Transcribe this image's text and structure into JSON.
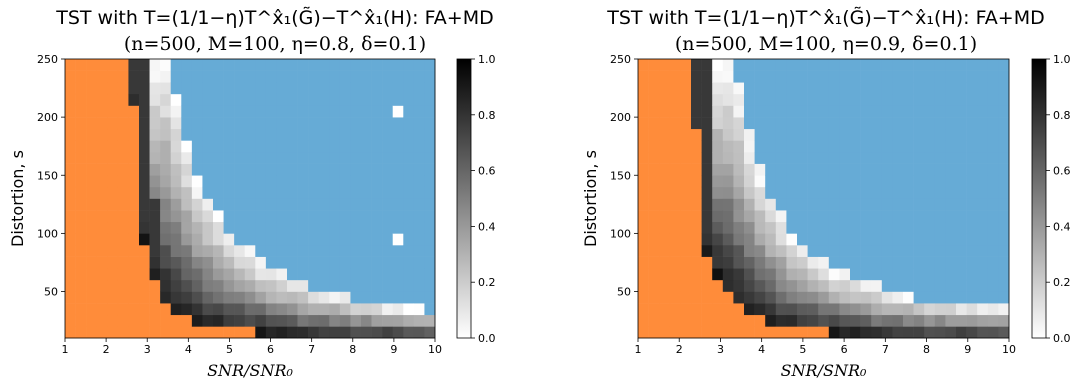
{
  "colors": {
    "fail_region": "#ff8c3a",
    "pass_region": "#66abd6"
  },
  "chart_data": [
    {
      "type": "heatmap",
      "title": "TST with T=(1/1−η)T^x̂₁(G̃)−T^x̂₁(H): FA+MD",
      "subtitle": "(n=500, M=100, η=0.8, δ=0.1)",
      "xlabel": "SNR/SNR₀",
      "ylabel": "Distortion, s",
      "xlim": [
        1,
        10
      ],
      "ylim": [
        10,
        250
      ],
      "x_ticks": [
        "1",
        "2",
        "3",
        "4",
        "5",
        "6",
        "7",
        "8",
        "9",
        "10"
      ],
      "y_ticks": [
        "50",
        "100",
        "150",
        "200",
        "250"
      ],
      "colorbar": {
        "range": [
          0.0,
          1.0
        ],
        "ticks": [
          "0.0",
          "0.2",
          "0.4",
          "0.6",
          "0.8",
          "1.0"
        ],
        "colormap": "white-to-black"
      },
      "boundary_s": [
        [
          2.6,
          250
        ],
        [
          2.7,
          200
        ],
        [
          2.8,
          150
        ],
        [
          2.9,
          100
        ],
        [
          3.0,
          80
        ],
        [
          3.2,
          60
        ],
        [
          3.5,
          40
        ],
        [
          4.0,
          25
        ],
        [
          5.0,
          18
        ],
        [
          6.0,
          14
        ],
        [
          7.0,
          12
        ],
        [
          8.0,
          11
        ],
        [
          10.0,
          10
        ]
      ],
      "transition_end_s": [
        [
          3.5,
          250
        ],
        [
          3.8,
          200
        ],
        [
          4.2,
          150
        ],
        [
          5.0,
          100
        ],
        [
          6.0,
          70
        ],
        [
          7.0,
          55
        ],
        [
          8.0,
          45
        ],
        [
          9.0,
          38
        ],
        [
          10.0,
          34
        ]
      ],
      "outliers": [
        {
          "x": 9.0,
          "s": 205,
          "value": 0.0
        },
        {
          "x": 9.0,
          "s": 95,
          "value": 0.0
        }
      ]
    },
    {
      "type": "heatmap",
      "title": "TST with T=(1/1−η)T^x̂₁(G̃)−T^x̂₁(H): FA+MD",
      "subtitle": "(n=500, M=100, η=0.9, δ=0.1)",
      "xlabel": "SNR/SNR₀",
      "ylabel": "Distortion, s",
      "xlim": [
        1,
        10
      ],
      "ylim": [
        10,
        250
      ],
      "x_ticks": [
        "1",
        "2",
        "3",
        "4",
        "5",
        "6",
        "7",
        "8",
        "9",
        "10"
      ],
      "y_ticks": [
        "50",
        "100",
        "150",
        "200",
        "250"
      ],
      "colorbar": {
        "range": [
          0.0,
          1.0
        ],
        "ticks": [
          "0.0",
          "0.2",
          "0.4",
          "0.6",
          "0.8",
          "1.0"
        ],
        "colormap": "white-to-black"
      },
      "boundary_s": [
        [
          2.35,
          250
        ],
        [
          2.4,
          200
        ],
        [
          2.45,
          150
        ],
        [
          2.5,
          100
        ],
        [
          2.7,
          80
        ],
        [
          3.0,
          60
        ],
        [
          3.5,
          40
        ],
        [
          4.0,
          25
        ],
        [
          5.0,
          18
        ],
        [
          6.0,
          14
        ],
        [
          7.0,
          12
        ],
        [
          8.0,
          11
        ],
        [
          10.0,
          10
        ]
      ],
      "transition_end_s": [
        [
          3.3,
          250
        ],
        [
          3.6,
          200
        ],
        [
          4.0,
          150
        ],
        [
          4.7,
          100
        ],
        [
          5.7,
          70
        ],
        [
          6.8,
          55
        ],
        [
          7.8,
          45
        ],
        [
          9.0,
          40
        ],
        [
          10.0,
          38
        ]
      ],
      "outliers": []
    }
  ]
}
